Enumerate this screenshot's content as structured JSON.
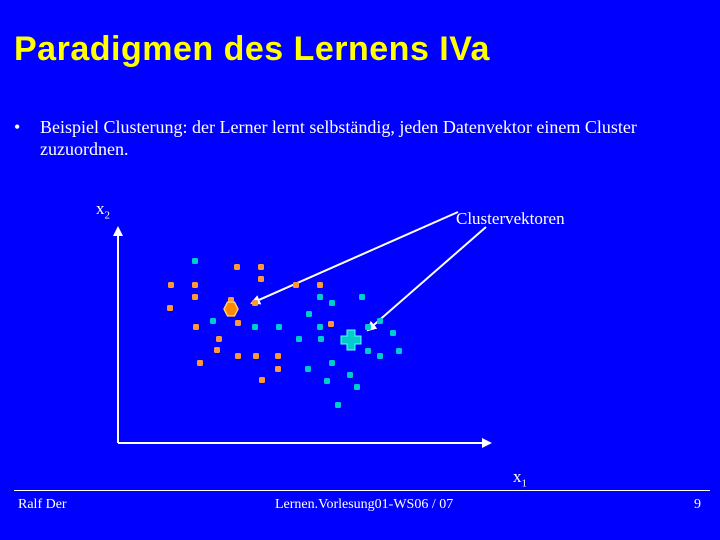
{
  "slide": {
    "title": "Paradigmen des Lernens IVa",
    "bullet_marker": "•",
    "bullet_text": "Beispiel Clusterung: der Lerner lernt selbständig, jeden Datenvektor einem Cluster zuzuordnen."
  },
  "diagram": {
    "y_axis_label": "x",
    "y_axis_sub": "2",
    "x_axis_label": "x",
    "x_axis_sub": "1",
    "callout_label": "Clustervektoren",
    "colors": {
      "axis": "#ffffff",
      "orange_points": "#ff9933",
      "cyan_points": "#00cccc",
      "orange_center": "#ff8800",
      "cyan_center": "#00cccc"
    },
    "clusters": [
      {
        "name": "orange",
        "point_count": 21,
        "center_shape": "hexagon"
      },
      {
        "name": "cyan",
        "point_count": 25,
        "center_shape": "cross"
      }
    ]
  },
  "footer": {
    "author": "Ralf Der",
    "lecture": "Lernen.Vorlesung01-WS06 / 07",
    "page_number": "9"
  }
}
